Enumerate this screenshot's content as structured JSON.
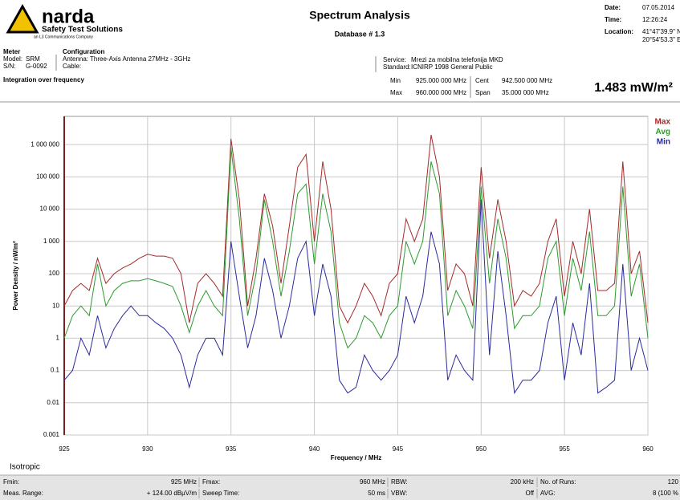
{
  "header": {
    "logo": "narda",
    "logo_tagline": "Safety Test Solutions",
    "logo_company": "an L3 Communications Company",
    "title": "Spectrum Analysis",
    "subtitle": "Database # 1.3",
    "info": [
      {
        "label": "Date:",
        "value": "07.05.2014"
      },
      {
        "label": "Time:",
        "value": "12:26:24"
      },
      {
        "label": "Location:",
        "value": "41°47'39.9\" N",
        "value2": "20°54'53.3\" E"
      }
    ]
  },
  "meter": {
    "title": "Meter",
    "rows": [
      {
        "label": "Model:",
        "value": "SRM"
      },
      {
        "label": "S/N:",
        "value": "G-0092"
      }
    ]
  },
  "configuration": {
    "title": "Configuration",
    "rows": [
      {
        "label": "Antenna:",
        "value": "Three-Axis Antenna 27MHz - 3GHz"
      },
      {
        "label": "Cable:"
      }
    ]
  },
  "service": {
    "rows": [
      {
        "label": "Service:",
        "value": "Mrezi za mobilna telefonija MKD"
      },
      {
        "label": "Standard:",
        "value": "ICNIRP 1998 General Public"
      }
    ]
  },
  "integration": {
    "title": "Integration over frequency",
    "min_label": "Min",
    "min": "925.000 000 MHz",
    "max_label": "Max",
    "max": "960.000 000 MHz",
    "cent_label": "Cent",
    "cent": "942.500 000 MHz",
    "span_label": "Span",
    "span": "35.000 000 MHz",
    "result": "1.483 mW/m²"
  },
  "chart_data": {
    "type": "line",
    "log_y": true,
    "grid": true,
    "legend": "top-right",
    "xlabel": "Frequency / MHz",
    "ylabel": "Power Density / nW/m²",
    "annotation": "Isotropic",
    "xlim": [
      925,
      960
    ],
    "xticks": [
      925,
      930,
      935,
      940,
      945,
      950,
      955,
      960
    ],
    "ylim": [
      0.001,
      7500000
    ],
    "yticks": [
      0.001,
      0.01,
      0.1,
      1,
      10,
      100,
      {
        "value": 1000,
        "label": "1 000"
      },
      {
        "value": 10000,
        "label": "10 000"
      },
      {
        "value": 100000,
        "label": "100 000"
      },
      {
        "value": 1000000,
        "label": "1 000 000"
      }
    ],
    "x": [
      925,
      925.5,
      926,
      926.5,
      927,
      927.5,
      928,
      928.5,
      929,
      929.5,
      930,
      930.5,
      931,
      931.5,
      932,
      932.5,
      933,
      933.5,
      934,
      934.5,
      935,
      935.5,
      936,
      936.5,
      937,
      937.5,
      938,
      938.5,
      939,
      939.5,
      940,
      940.5,
      941,
      941.5,
      942,
      942.5,
      943,
      943.5,
      944,
      944.5,
      945,
      945.5,
      946,
      946.5,
      947,
      947.5,
      948,
      948.5,
      949,
      949.5,
      950,
      950.5,
      951,
      951.5,
      952,
      952.5,
      953,
      953.5,
      954,
      954.5,
      955,
      955.5,
      956,
      956.5,
      957,
      957.5,
      958,
      958.5,
      959,
      959.5,
      960
    ],
    "series": [
      {
        "name": "Max",
        "color": "#a52a2a",
        "values": [
          10,
          30,
          50,
          30,
          300,
          50,
          100,
          150,
          200,
          300,
          400,
          350,
          350,
          300,
          100,
          3,
          50,
          100,
          50,
          20,
          1500000,
          20000,
          10,
          300,
          30000,
          3000,
          50,
          3000,
          200000,
          500000,
          1000,
          300000,
          10000,
          10,
          3,
          10,
          50,
          20,
          5,
          50,
          100,
          5000,
          1000,
          5000,
          2000000,
          100000,
          30,
          200,
          100,
          10,
          200000,
          300,
          20000,
          1000,
          10,
          30,
          20,
          50,
          1000,
          5000,
          20,
          1000,
          100,
          10000,
          30,
          30,
          50,
          300000,
          100,
          500,
          3
        ]
      },
      {
        "name": "Avg",
        "color": "#2e9b2e",
        "values": [
          1,
          5,
          10,
          5,
          200,
          10,
          30,
          50,
          60,
          60,
          70,
          60,
          50,
          40,
          10,
          1.5,
          10,
          30,
          10,
          5,
          800000,
          5000,
          5,
          100,
          20000,
          1000,
          20,
          500,
          30000,
          60000,
          200,
          30000,
          2000,
          3,
          0.5,
          1,
          5,
          3,
          1,
          5,
          10,
          1000,
          200,
          1000,
          300000,
          30000,
          5,
          30,
          10,
          2,
          50000,
          50,
          5000,
          300,
          2,
          5,
          5,
          10,
          300,
          1000,
          5,
          300,
          30,
          2000,
          5,
          5,
          10,
          50000,
          20,
          200,
          1
        ]
      },
      {
        "name": "Min",
        "color": "#2b2b9e",
        "values": [
          0.05,
          0.1,
          1,
          0.3,
          5,
          0.5,
          2,
          5,
          10,
          5,
          5,
          3,
          2,
          1,
          0.3,
          0.03,
          0.3,
          1,
          1,
          0.3,
          1000,
          20,
          0.5,
          5,
          300,
          30,
          1,
          10,
          300,
          1000,
          5,
          200,
          20,
          0.05,
          0.02,
          0.03,
          0.3,
          0.1,
          0.05,
          0.1,
          0.3,
          20,
          3,
          20,
          2000,
          200,
          0.05,
          0.3,
          0.1,
          0.05,
          20000,
          0.3,
          500,
          5,
          0.02,
          0.05,
          0.05,
          0.1,
          3,
          20,
          0.05,
          3,
          0.3,
          50,
          0.02,
          0.03,
          0.05,
          200,
          0.1,
          1,
          0.1
        ]
      }
    ]
  },
  "footer": {
    "rows": [
      [
        {
          "label": "Fmin:",
          "value": "925 MHz"
        },
        {
          "label": "Fmax:",
          "value": "960 MHz"
        },
        {
          "label": "RBW:",
          "value": "200 kHz"
        },
        {
          "label": "No. of Runs:",
          "value": "120"
        }
      ],
      [
        {
          "label": "Meas. Range:",
          "value": "+ 124.00 dBµV/m"
        },
        {
          "label": "Sweep Time:",
          "value": "50 ms"
        },
        {
          "label": "VBW:",
          "value": "Off"
        },
        {
          "label": "AVG:",
          "value": "8 (100 %"
        }
      ]
    ]
  }
}
